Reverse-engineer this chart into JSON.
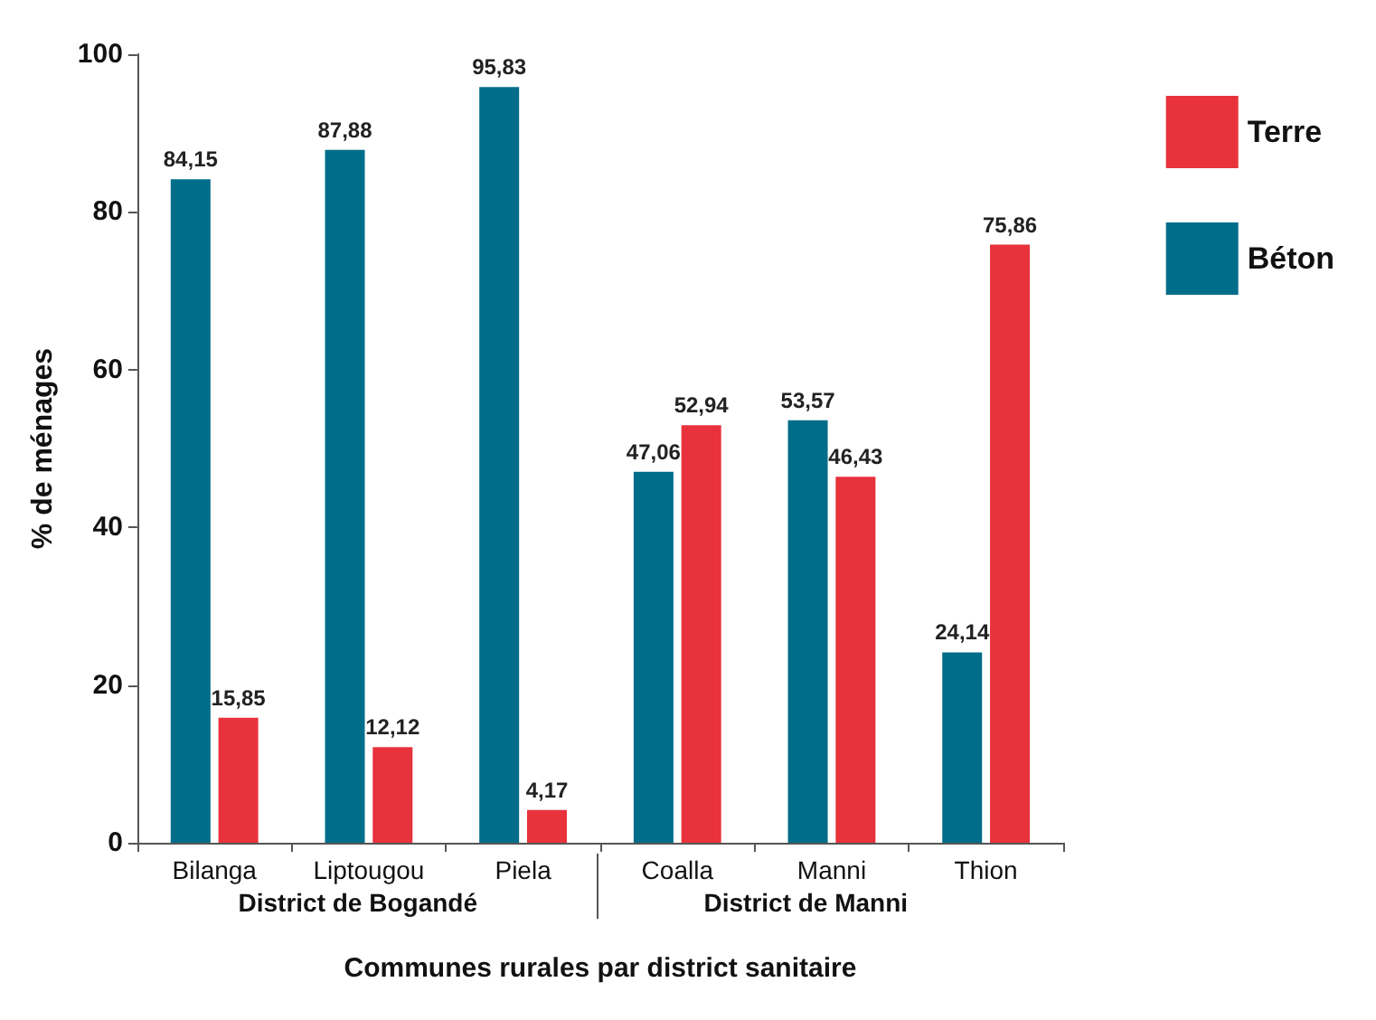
{
  "chart_data": {
    "type": "bar",
    "xlabel": "Communes rurales par district sanitaire",
    "ylabel": "% de ménages",
    "categories": [
      "Bilanga",
      "Liptougou",
      "Piela",
      "Coalla",
      "Manni",
      "Thion"
    ],
    "series": [
      {
        "name": "Béton",
        "color": "#006d8a",
        "values": [
          84.15,
          87.88,
          95.83,
          47.06,
          53.57,
          24.14
        ],
        "value_labels": [
          "84,15",
          "87,88",
          "95,83",
          "47,06",
          "53,57",
          "24,14"
        ]
      },
      {
        "name": "Terre",
        "color": "#e8323c",
        "values": [
          15.85,
          12.12,
          4.17,
          52.94,
          46.43,
          75.86
        ],
        "value_labels": [
          "15,85",
          "12,12",
          "4,17",
          "52,94",
          "46,43",
          "75,86"
        ]
      }
    ],
    "ylim": [
      0,
      100
    ],
    "yticks": [
      0,
      20,
      40,
      60,
      80,
      100
    ],
    "grid": false,
    "legend": "right",
    "annotations": [
      "District de Bogandé",
      "District de Manni"
    ]
  }
}
